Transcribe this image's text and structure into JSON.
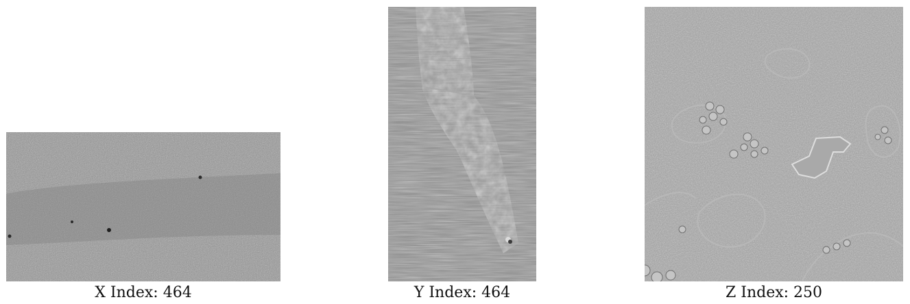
{
  "panels": [
    {
      "id": "x",
      "axis": "X",
      "caption": "X Index: 464",
      "image_description_icon": "tomogram-slice-x"
    },
    {
      "id": "y",
      "axis": "Y",
      "caption": "Y Index: 464",
      "image_description_icon": "tomogram-slice-y"
    },
    {
      "id": "z",
      "axis": "Z",
      "caption": "Z Index: 250",
      "image_description_icon": "tomogram-slice-z"
    }
  ],
  "colors": {
    "background": "#ffffff",
    "slice_gray": "#8c8c8c",
    "text": "#111111"
  }
}
